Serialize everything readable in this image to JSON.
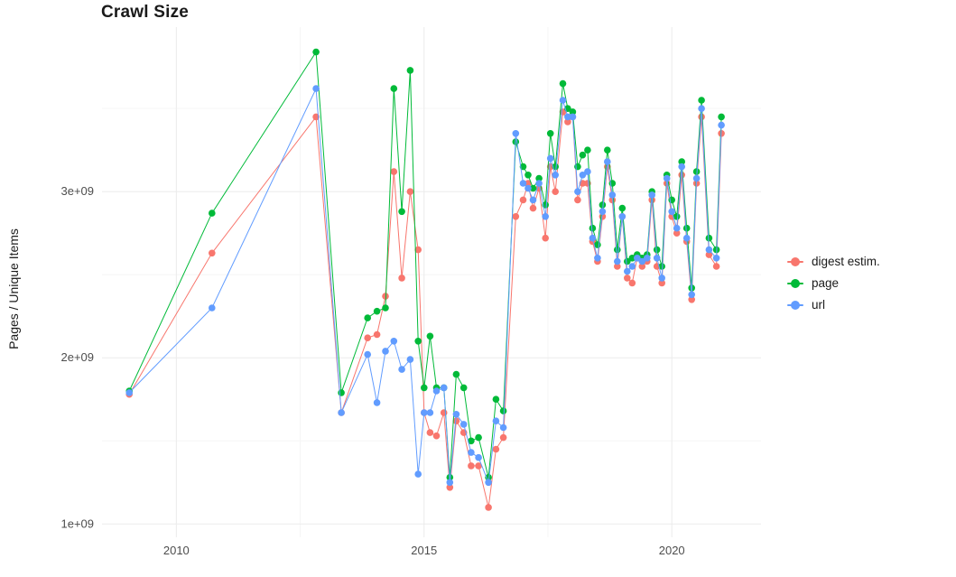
{
  "chart_data": {
    "type": "line",
    "title": "Crawl Size",
    "xlabel": "",
    "ylabel": "Pages / Unique Items",
    "grid": true,
    "legend_position": "right",
    "xlim": [
      2008.5,
      2021.8
    ],
    "ylim_e9": [
      0.92,
      3.99
    ],
    "x_ticks": [
      {
        "value": 2010,
        "label": "2010"
      },
      {
        "value": 2015,
        "label": "2015"
      },
      {
        "value": 2020,
        "label": "2020"
      }
    ],
    "y_ticks": [
      {
        "value": 1,
        "label": "1e+09"
      },
      {
        "value": 2,
        "label": "2e+09"
      },
      {
        "value": 3,
        "label": "3e+09"
      }
    ],
    "x_minor_ticks": [
      2012.5,
      2017.5
    ],
    "y_minor_ticks": [
      1.5,
      2.5,
      3.5
    ],
    "x": [
      2009.05,
      2010.72,
      2012.82,
      2013.33,
      2013.86,
      2014.05,
      2014.22,
      2014.39,
      2014.55,
      2014.72,
      2014.88,
      2015.0,
      2015.12,
      2015.25,
      2015.4,
      2015.52,
      2015.65,
      2015.8,
      2015.95,
      2016.1,
      2016.3,
      2016.45,
      2016.6,
      2016.85,
      2017.0,
      2017.1,
      2017.2,
      2017.32,
      2017.45,
      2017.55,
      2017.65,
      2017.8,
      2017.9,
      2018.0,
      2018.1,
      2018.2,
      2018.3,
      2018.4,
      2018.5,
      2018.6,
      2018.7,
      2018.8,
      2018.9,
      2019.0,
      2019.1,
      2019.2,
      2019.3,
      2019.4,
      2019.5,
      2019.6,
      2019.7,
      2019.8,
      2019.9,
      2020.0,
      2020.1,
      2020.2,
      2020.3,
      2020.4,
      2020.5,
      2020.6,
      2020.75,
      2020.9,
      2021.0
    ],
    "series": [
      {
        "name": "digest estim.",
        "color": "#F8766D",
        "values_e9": [
          1.78,
          2.63,
          3.45,
          1.67,
          2.12,
          2.14,
          2.37,
          3.12,
          2.48,
          3.0,
          2.65,
          1.67,
          1.55,
          1.53,
          1.67,
          1.22,
          1.62,
          1.55,
          1.35,
          1.35,
          1.1,
          1.45,
          1.52,
          2.85,
          2.95,
          3.05,
          2.9,
          3.02,
          2.72,
          3.15,
          3.0,
          3.48,
          3.42,
          3.45,
          2.95,
          3.05,
          3.05,
          2.7,
          2.58,
          2.85,
          3.15,
          2.95,
          2.55,
          2.85,
          2.48,
          2.45,
          2.6,
          2.55,
          2.58,
          2.95,
          2.55,
          2.45,
          3.05,
          2.85,
          2.75,
          3.1,
          2.7,
          2.35,
          3.05,
          3.45,
          2.62,
          2.55,
          3.35
        ]
      },
      {
        "name": "page",
        "color": "#00BA38",
        "values_e9": [
          1.8,
          2.87,
          3.84,
          1.79,
          2.24,
          2.28,
          2.3,
          3.62,
          2.88,
          3.73,
          2.1,
          1.82,
          2.13,
          1.82,
          1.82,
          1.28,
          1.9,
          1.82,
          1.5,
          1.52,
          1.28,
          1.75,
          1.68,
          3.3,
          3.15,
          3.1,
          3.02,
          3.08,
          2.92,
          3.35,
          3.15,
          3.65,
          3.5,
          3.48,
          3.15,
          3.22,
          3.25,
          2.78,
          2.68,
          2.92,
          3.25,
          3.05,
          2.65,
          2.9,
          2.58,
          2.6,
          2.62,
          2.6,
          2.62,
          3.0,
          2.65,
          2.55,
          3.1,
          2.95,
          2.85,
          3.18,
          2.78,
          2.42,
          3.12,
          3.55,
          2.72,
          2.65,
          3.45
        ]
      },
      {
        "name": "url",
        "color": "#619CFF",
        "values_e9": [
          1.79,
          2.3,
          3.62,
          1.67,
          2.02,
          1.73,
          2.04,
          2.1,
          1.93,
          1.99,
          1.3,
          1.67,
          1.67,
          1.8,
          1.82,
          1.25,
          1.66,
          1.6,
          1.43,
          1.4,
          1.25,
          1.62,
          1.58,
          3.35,
          3.05,
          3.02,
          2.95,
          3.05,
          2.85,
          3.2,
          3.1,
          3.55,
          3.45,
          3.45,
          3.0,
          3.1,
          3.12,
          2.72,
          2.6,
          2.88,
          3.18,
          2.98,
          2.58,
          2.85,
          2.52,
          2.55,
          2.6,
          2.58,
          2.6,
          2.98,
          2.6,
          2.48,
          3.08,
          2.88,
          2.78,
          3.15,
          2.72,
          2.38,
          3.08,
          3.5,
          2.65,
          2.6,
          3.4
        ]
      }
    ],
    "style": {
      "grid_major_color": "#ebebeb",
      "grid_minor_color": "#f6f6f6",
      "tick_label_color": "#4d4d4d",
      "point_radius": 3.8,
      "line_width": 1
    }
  }
}
